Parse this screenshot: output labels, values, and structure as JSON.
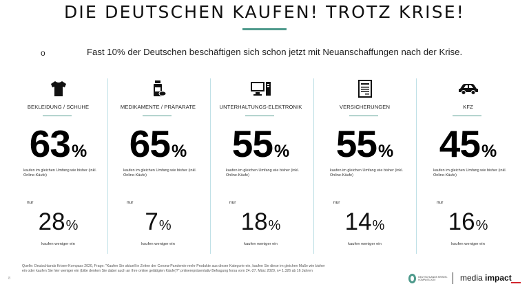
{
  "title": "DIE DEUTSCHEN KAUFEN! TROTZ KRISE!",
  "bullet": "o",
  "subtitle": "Fast 10% der Deutschen beschäftigen sich schon jetzt mit Neuanschaffungen nach der Krise.",
  "accent_color": "#4e9a8c",
  "divider_color": "#bfe0e6",
  "pct_sign": "%",
  "categories": [
    {
      "icon": "tshirt-icon",
      "label": "BEKLEIDUNG / SCHUHE",
      "big_value": "63",
      "desc": "kaufen im gleichen Umfang wie bisher (inkl. Online-Käufe)",
      "nur": "nur",
      "small_value": "28",
      "less_label": "kaufen weniger ein"
    },
    {
      "icon": "medicine-icon",
      "label": "MEDIKAMENTE / PRÄPARATE",
      "big_value": "65",
      "desc": "kaufen im gleichen Umfang wie bisher (inkl. Online-Käufe)",
      "nur": "nur",
      "small_value": "7",
      "less_label": "kaufen weniger ein"
    },
    {
      "icon": "computer-icon",
      "label": "UNTERHALTUNGS-ELEKTRONIK",
      "big_value": "55",
      "desc": "kaufen im gleichen Umfang wie bisher (inkl. Online-Käufe)",
      "nur": "nur",
      "small_value": "18",
      "less_label": "kaufen weniger ein"
    },
    {
      "icon": "document-icon",
      "label": "VERSICHERUNGEN",
      "big_value": "55",
      "desc": "kaufen im gleichen Umfang wie bisher (inkl. Online-Käufe)",
      "nur": "nur",
      "small_value": "14",
      "less_label": "kaufen weniger ein"
    },
    {
      "icon": "car-icon",
      "label": "KFZ",
      "big_value": "45",
      "desc": "kaufen im gleichen Umfang wie bisher (inkl. Online-Käufe)",
      "nur": "nur",
      "small_value": "16",
      "less_label": "kaufen weniger ein"
    }
  ],
  "footer": {
    "page_number": "8",
    "source": "Quelle: Deutschlands Krisen-Kompass 2020, Frage: \"Kaufen Sie aktuell in Zeiten der Corona-Pandemie mehr Produkte aus dieser Kategorie ein, kaufen Sie diese im gleichen Maße wie bisher ein oder kaufen Sie hier weniger ein (bitte denken Sie dabei auch an Ihre online getätigten Käufe)?\",onlinerepräsentativ Befragung forsa vom 24.-27. März 2020, n= 1.326 ab 16 Jahren",
    "logo1_text": "DEUTSCHLANDS KRISEN-KOMPASS 2020",
    "logo2_light": "media ",
    "logo2_bold": "impact",
    "brand_red": "#d2262f"
  }
}
